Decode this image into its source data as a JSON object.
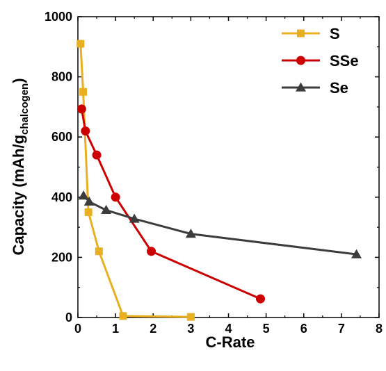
{
  "chart_data": {
    "type": "line",
    "xlabel": "C-Rate",
    "ylabel": "Capacity (mAh/g",
    "ylabel_subscript": "chalcogen",
    "ylabel_close": ")",
    "xlim": [
      0,
      8
    ],
    "ylim": [
      0,
      1000
    ],
    "xticks": [
      "0",
      "1",
      "2",
      "3",
      "4",
      "5",
      "6",
      "7",
      "8"
    ],
    "yticks": [
      "0",
      "200",
      "400",
      "600",
      "800",
      "1000"
    ],
    "grid": false,
    "legend_position": "top-right",
    "series": [
      {
        "name": "S",
        "color": "#E8B020",
        "marker": "square",
        "x": [
          0.07,
          0.14,
          0.28,
          0.56,
          1.2,
          3.0
        ],
        "y": [
          910,
          750,
          350,
          220,
          5,
          2
        ]
      },
      {
        "name": "SSe",
        "color": "#CC0000",
        "marker": "circle",
        "x": [
          0.1,
          0.2,
          0.5,
          1.0,
          1.95,
          4.85
        ],
        "y": [
          693,
          620,
          540,
          400,
          220,
          62
        ]
      },
      {
        "name": "Se",
        "color": "#3C3C3C",
        "marker": "triangle",
        "x": [
          0.15,
          0.3,
          0.75,
          1.5,
          3.0,
          7.4
        ],
        "y": [
          405,
          385,
          357,
          328,
          278,
          210
        ]
      }
    ]
  }
}
